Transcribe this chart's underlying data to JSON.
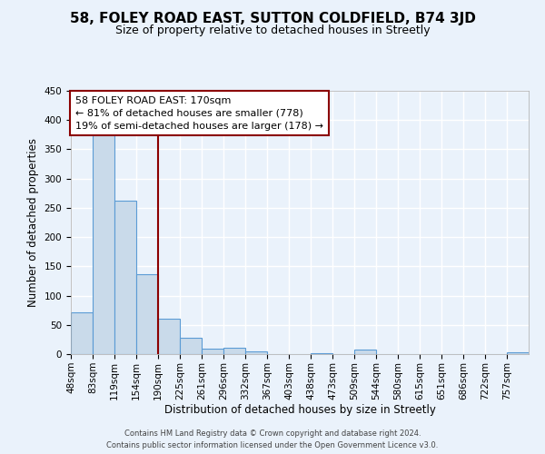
{
  "title": "58, FOLEY ROAD EAST, SUTTON COLDFIELD, B74 3JD",
  "subtitle": "Size of property relative to detached houses in Streetly",
  "xlabel": "Distribution of detached houses by size in Streetly",
  "ylabel": "Number of detached properties",
  "bin_labels": [
    "48sqm",
    "83sqm",
    "119sqm",
    "154sqm",
    "190sqm",
    "225sqm",
    "261sqm",
    "296sqm",
    "332sqm",
    "367sqm",
    "403sqm",
    "438sqm",
    "473sqm",
    "509sqm",
    "544sqm",
    "580sqm",
    "615sqm",
    "651sqm",
    "686sqm",
    "722sqm",
    "757sqm"
  ],
  "bar_values": [
    72,
    375,
    262,
    137,
    60,
    28,
    10,
    11,
    5,
    0,
    0,
    2,
    0,
    8,
    0,
    0,
    0,
    0,
    0,
    0,
    3
  ],
  "bar_color": "#c9daea",
  "bar_edge_color": "#5b9bd5",
  "ylim": [
    0,
    450
  ],
  "yticks": [
    0,
    50,
    100,
    150,
    200,
    250,
    300,
    350,
    400,
    450
  ],
  "vline_color": "#8b0000",
  "vline_x": 4.0,
  "annotation_title": "58 FOLEY ROAD EAST: 170sqm",
  "annotation_line1": "← 81% of detached houses are smaller (778)",
  "annotation_line2": "19% of semi-detached houses are larger (178) →",
  "annotation_box_color": "#ffffff",
  "annotation_box_edge": "#8b0000",
  "footer_line1": "Contains HM Land Registry data © Crown copyright and database right 2024.",
  "footer_line2": "Contains public sector information licensed under the Open Government Licence v3.0.",
  "background_color": "#eaf2fb",
  "plot_bg_color": "#eaf2fb",
  "grid_color": "#ffffff",
  "title_fontsize": 11,
  "subtitle_fontsize": 9,
  "axis_label_fontsize": 8.5,
  "tick_fontsize": 7.5,
  "annotation_fontsize": 8,
  "footer_fontsize": 6
}
